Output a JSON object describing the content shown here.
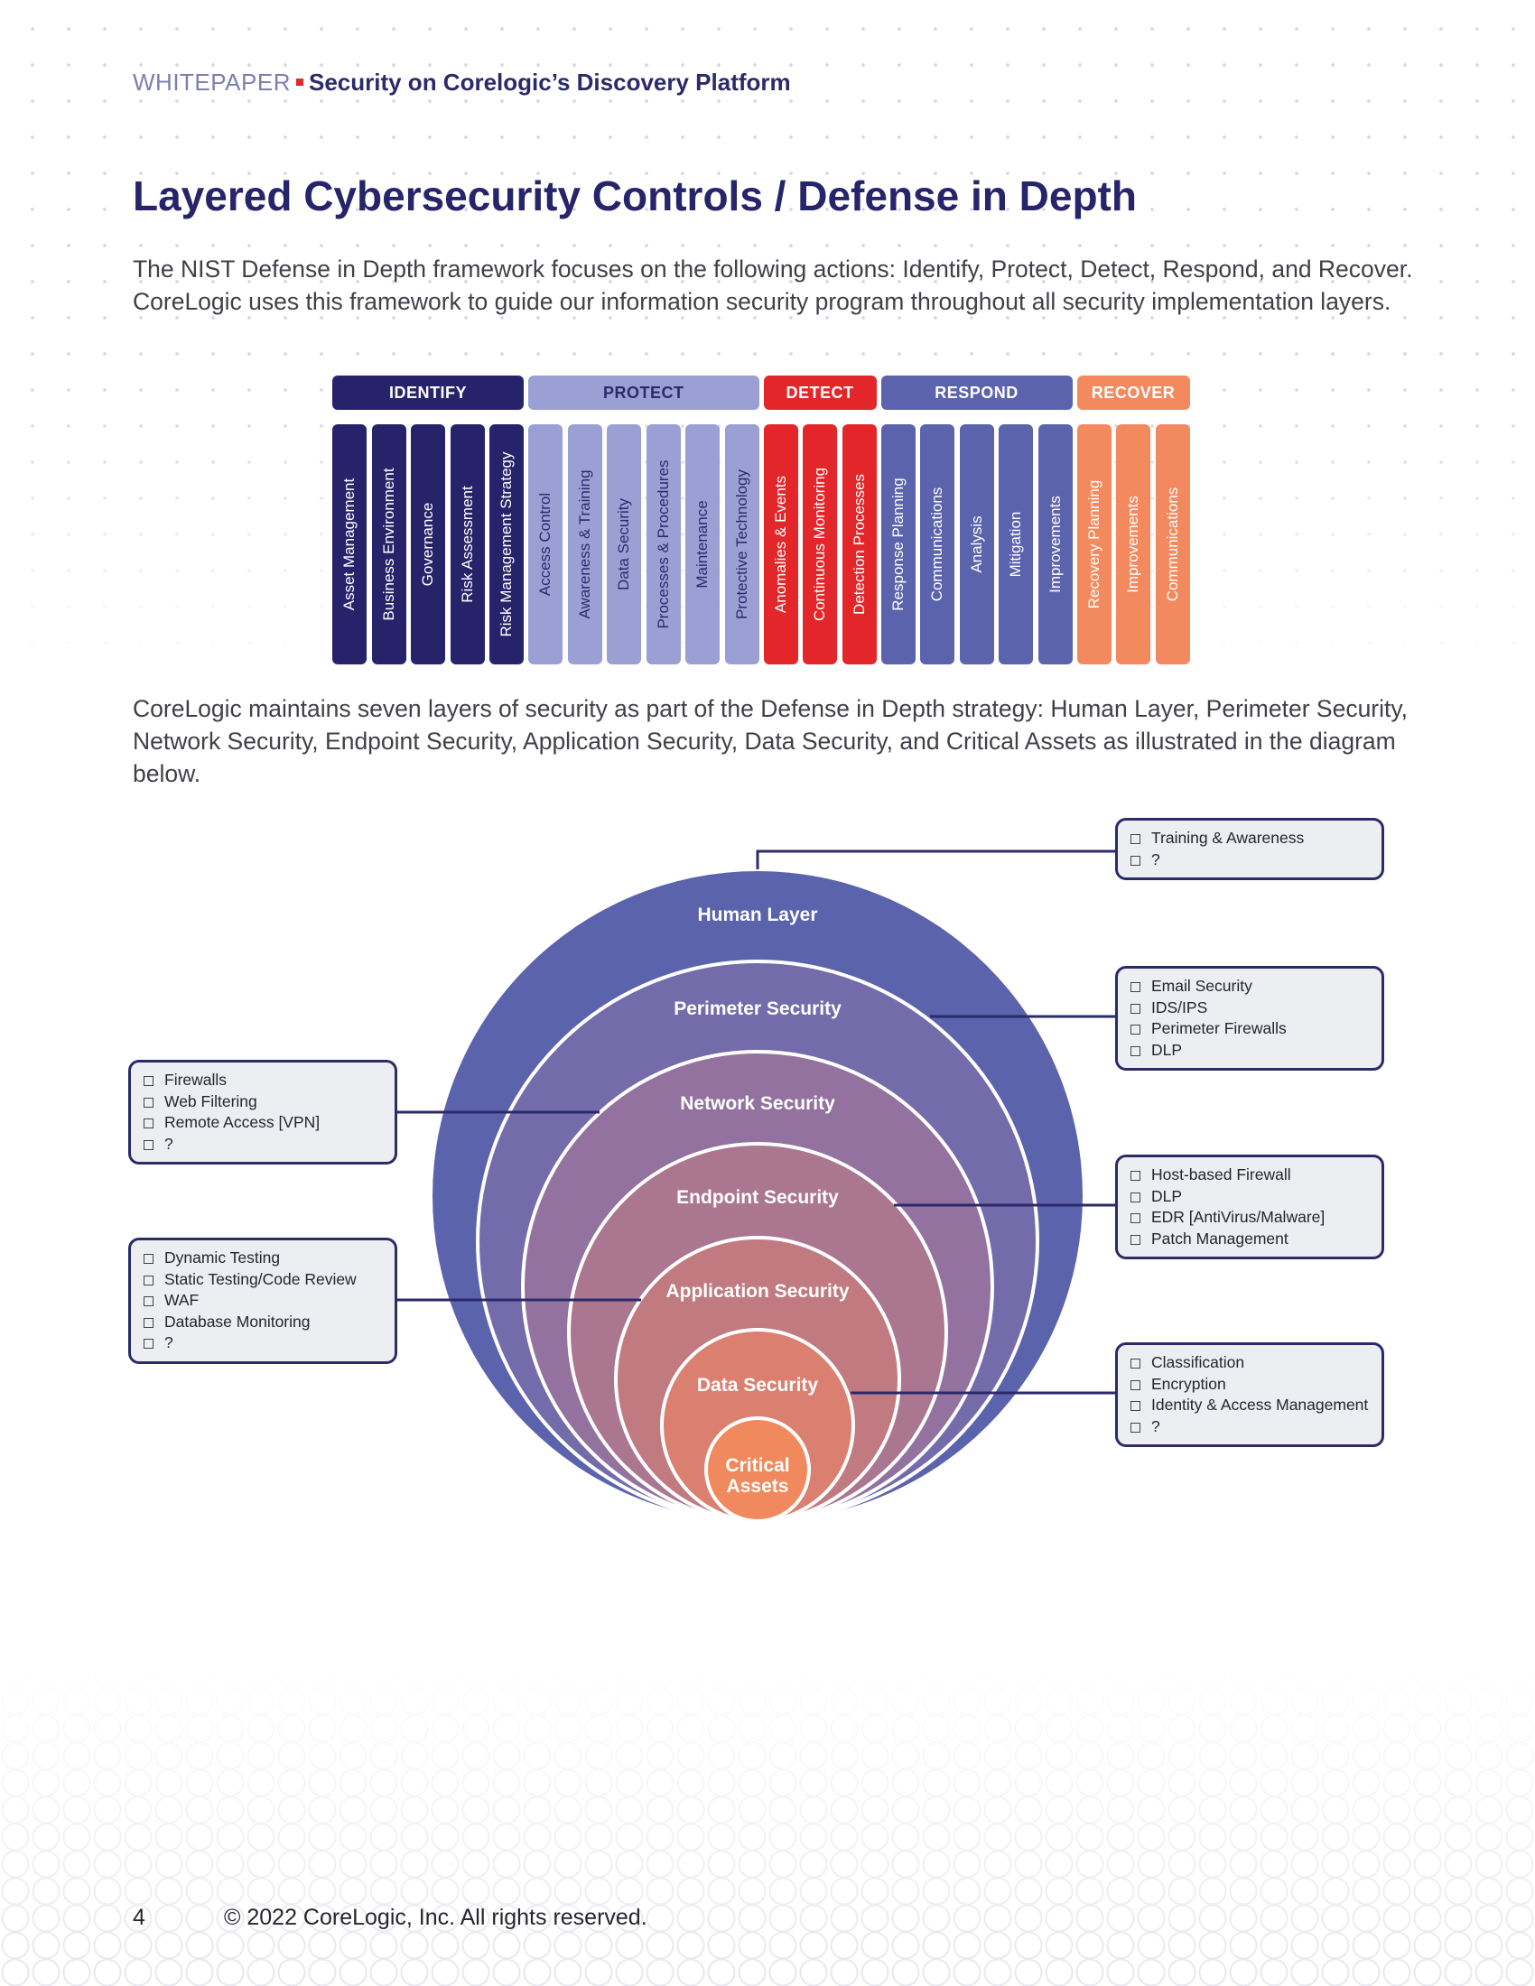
{
  "header": {
    "kicker": "WHITEPAPER",
    "doc_title": "Security on Corelogic’s Discovery Platform"
  },
  "page_title": "Layered Cybersecurity Controls / Defense in Depth",
  "intro": "The NIST Defense in Depth framework focuses on the following actions: Identify, Protect, Detect, Respond, and Recover. CoreLogic uses this framework to guide our information security program throughout all security implementation layers.",
  "nist": {
    "categories": [
      {
        "label": "IDENTIFY",
        "color": "#26236a",
        "text_color": "#ffffff",
        "items": [
          "Asset Management",
          "Business Environment",
          "Governance",
          "Risk Assessment",
          "Risk Management Strategy"
        ]
      },
      {
        "label": "PROTECT",
        "color": "#9aa0d4",
        "text_color": "#2b2a6a",
        "items": [
          "Access Control",
          "Awareness & Training",
          "Data Security",
          "Processes & Procedures",
          "Maintenance",
          "Protective Technology"
        ]
      },
      {
        "label": "DETECT",
        "color": "#e3262a",
        "text_color": "#ffffff",
        "items": [
          "Anomalies & Events",
          "Continuous Monitoring",
          "Detection Processes"
        ]
      },
      {
        "label": "RESPOND",
        "color": "#5b63ad",
        "text_color": "#ffffff",
        "items": [
          "Response Planning",
          "Communications",
          "Analysis",
          "Mitigation",
          "Improvements"
        ]
      },
      {
        "label": "RECOVER",
        "color": "#f38a5f",
        "text_color": "#ffffff",
        "items": [
          "Recovery Planning",
          "Improvements",
          "Communications"
        ]
      }
    ]
  },
  "layers_intro": "CoreLogic maintains seven layers of security as part of the Defense in Depth strategy: Human Layer, Perimeter Security, Network Security, Endpoint Security, Application Security, Data Security, and Critical Assets as illustrated in the diagram below.",
  "diagram": {
    "layers": [
      {
        "label": "Human Layer",
        "color": "#5b63ad"
      },
      {
        "label": "Perimeter Security",
        "color": "#746bab"
      },
      {
        "label": "Network Security",
        "color": "#93729f"
      },
      {
        "label": "Endpoint Security",
        "color": "#ab7690"
      },
      {
        "label": "Application Security",
        "color": "#c07a80"
      },
      {
        "label": "Data Security",
        "color": "#db8070"
      },
      {
        "label": "Critical Assets",
        "label_line1": "Critical",
        "label_line2": "Assets",
        "color": "#f08a5e"
      }
    ],
    "callouts": {
      "human": [
        "Training & Awareness",
        "?"
      ],
      "perimeter": [
        "Email Security",
        "IDS/IPS",
        "Perimeter Firewalls",
        "DLP"
      ],
      "network": [
        "Firewalls",
        "Web Filtering",
        "Remote Access [VPN]",
        "?"
      ],
      "endpoint": [
        "Host-based Firewall",
        "DLP",
        "EDR [AntiVirus/Malware]",
        "Patch Management"
      ],
      "application": [
        "Dynamic Testing",
        "Static Testing/Code Review",
        "WAF",
        "Database Monitoring",
        "?"
      ],
      "data": [
        "Classification",
        "Encryption",
        "Identity & Access Management",
        "?"
      ]
    }
  },
  "footer": {
    "page_number": "4",
    "copyright": "© 2022 CoreLogic, Inc. All rights reserved."
  }
}
